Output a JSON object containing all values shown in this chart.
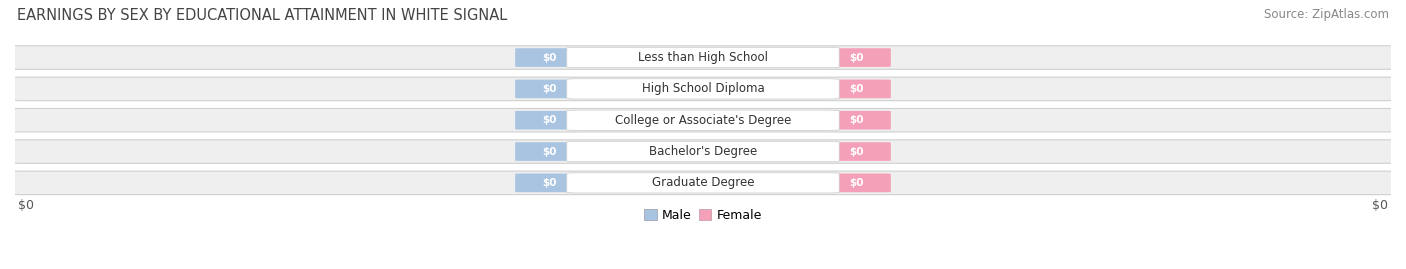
{
  "title": "EARNINGS BY SEX BY EDUCATIONAL ATTAINMENT IN WHITE SIGNAL",
  "source": "Source: ZipAtlas.com",
  "categories": [
    "Less than High School",
    "High School Diploma",
    "College or Associate's Degree",
    "Bachelor's Degree",
    "Graduate Degree"
  ],
  "male_color": "#a8c4e0",
  "female_color": "#f4a0b8",
  "bar_label": "$0",
  "title_fontsize": 10.5,
  "source_fontsize": 8.5,
  "legend_male": "Male",
  "legend_female": "Female",
  "row_facecolor": "#efefef",
  "row_edgecolor": "#d0d0d0",
  "cat_box_facecolor": "white",
  "cat_box_edgecolor": "#cccccc",
  "bottom_label_color": "#555555",
  "cat_text_color": "#333333",
  "title_color": "#444444",
  "source_color": "#888888"
}
